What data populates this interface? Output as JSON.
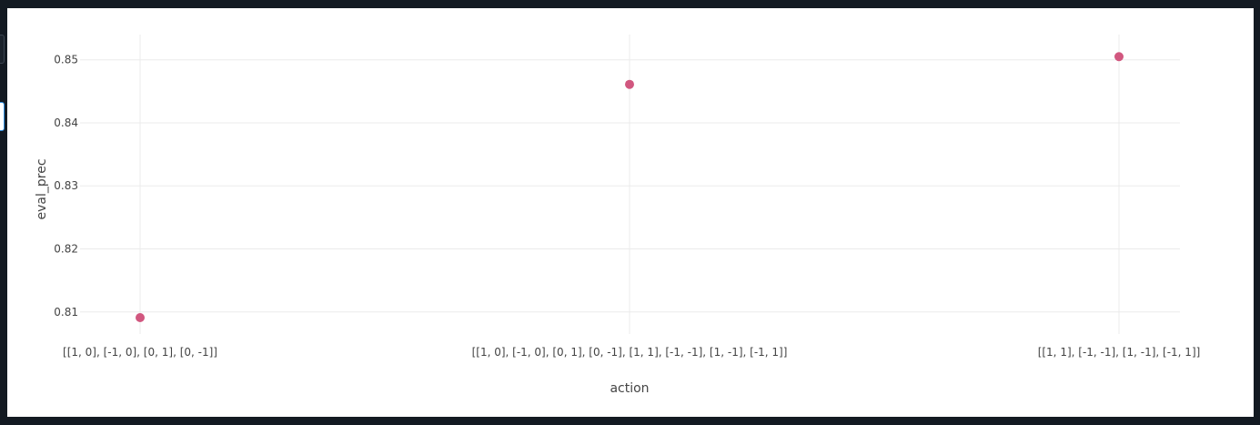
{
  "chart_data": {
    "type": "scatter",
    "xlabel": "action",
    "ylabel": "eval_prec",
    "categories": [
      "[[1, 0], [-1, 0], [0, 1], [0, -1]]",
      "[[1, 0], [-1, 0], [0, 1], [0, -1], [1, 1], [-1, -1], [1, -1], [-1, 1]]",
      "[[1, 1], [-1, -1], [1, -1], [-1, 1]]"
    ],
    "series": [
      {
        "values": [
          0.8091,
          0.8461,
          0.8505
        ]
      }
    ],
    "yticks": [
      0.81,
      0.82,
      0.83,
      0.84,
      0.85
    ],
    "ytick_labels": [
      "0.81",
      "0.82",
      "0.83",
      "0.84",
      "0.85"
    ],
    "ylim": [
      0.8065,
      0.854
    ],
    "grid": true,
    "marker_color": "#d1577f"
  }
}
